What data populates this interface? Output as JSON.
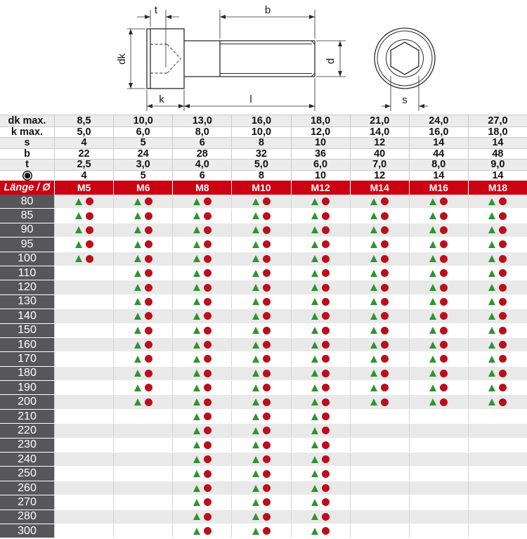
{
  "diagram": {
    "labels": {
      "t": "t",
      "b": "b",
      "dk": "dk",
      "k": "k",
      "l": "l",
      "d": "d",
      "s": "s"
    }
  },
  "spec_table": {
    "rows": [
      {
        "label": "dk max.",
        "values": [
          "8,5",
          "10,0",
          "13,0",
          "16,0",
          "18,0",
          "21,0",
          "24,0",
          "27,0"
        ]
      },
      {
        "label": "k max.",
        "values": [
          "5,0",
          "6,0",
          "8,0",
          "10,0",
          "12,0",
          "14,0",
          "16,0",
          "18,0"
        ]
      },
      {
        "label": "s",
        "values": [
          "4",
          "5",
          "6",
          "8",
          "10",
          "12",
          "14",
          "14"
        ]
      },
      {
        "label": "b",
        "values": [
          "22",
          "24",
          "28",
          "32",
          "36",
          "40",
          "44",
          "48"
        ]
      },
      {
        "label": "t",
        "values": [
          "2,5",
          "3,0",
          "4,0",
          "5,0",
          "6,0",
          "7,0",
          "8,0",
          "9,0"
        ]
      },
      {
        "label": "",
        "icon": "hex-key-icon",
        "values": [
          "4",
          "5",
          "6",
          "8",
          "10",
          "12",
          "14",
          "14"
        ]
      }
    ]
  },
  "matrix": {
    "corner_label": "Länge / Ø",
    "columns": [
      "M5",
      "M6",
      "M8",
      "M10",
      "M12",
      "M14",
      "M16",
      "M18"
    ],
    "marker_meaning": {
      "triangle": "triangle-marker",
      "circle": "circle-marker"
    },
    "rows": [
      {
        "length": "80",
        "available": [
          1,
          1,
          1,
          1,
          1,
          1,
          1,
          1
        ]
      },
      {
        "length": "85",
        "available": [
          1,
          1,
          1,
          1,
          1,
          1,
          1,
          1
        ]
      },
      {
        "length": "90",
        "available": [
          1,
          1,
          1,
          1,
          1,
          1,
          1,
          1
        ]
      },
      {
        "length": "95",
        "available": [
          1,
          1,
          1,
          1,
          1,
          1,
          1,
          1
        ]
      },
      {
        "length": "100",
        "available": [
          1,
          1,
          1,
          1,
          1,
          1,
          1,
          1
        ]
      },
      {
        "length": "110",
        "available": [
          0,
          1,
          1,
          1,
          1,
          1,
          1,
          1
        ]
      },
      {
        "length": "120",
        "available": [
          0,
          1,
          1,
          1,
          1,
          1,
          1,
          1
        ]
      },
      {
        "length": "130",
        "available": [
          0,
          1,
          1,
          1,
          1,
          1,
          1,
          1
        ]
      },
      {
        "length": "140",
        "available": [
          0,
          1,
          1,
          1,
          1,
          1,
          1,
          1
        ]
      },
      {
        "length": "150",
        "available": [
          0,
          1,
          1,
          1,
          1,
          1,
          1,
          1
        ]
      },
      {
        "length": "160",
        "available": [
          0,
          1,
          1,
          1,
          1,
          1,
          1,
          1
        ]
      },
      {
        "length": "170",
        "available": [
          0,
          1,
          1,
          1,
          1,
          1,
          1,
          1
        ]
      },
      {
        "length": "180",
        "available": [
          0,
          1,
          1,
          1,
          1,
          1,
          1,
          1
        ]
      },
      {
        "length": "190",
        "available": [
          0,
          1,
          1,
          1,
          1,
          1,
          1,
          1
        ]
      },
      {
        "length": "200",
        "available": [
          0,
          1,
          1,
          1,
          1,
          1,
          1,
          1
        ]
      },
      {
        "length": "210",
        "available": [
          0,
          0,
          1,
          1,
          1,
          0,
          0,
          0
        ]
      },
      {
        "length": "220",
        "available": [
          0,
          0,
          1,
          1,
          1,
          0,
          0,
          0
        ]
      },
      {
        "length": "230",
        "available": [
          0,
          0,
          1,
          1,
          1,
          0,
          0,
          0
        ]
      },
      {
        "length": "240",
        "available": [
          0,
          0,
          1,
          1,
          1,
          0,
          0,
          0
        ]
      },
      {
        "length": "250",
        "available": [
          0,
          0,
          1,
          1,
          1,
          0,
          0,
          0
        ]
      },
      {
        "length": "260",
        "available": [
          0,
          0,
          1,
          1,
          1,
          0,
          0,
          0
        ]
      },
      {
        "length": "270",
        "available": [
          0,
          0,
          1,
          1,
          1,
          0,
          0,
          0
        ]
      },
      {
        "length": "280",
        "available": [
          0,
          0,
          1,
          1,
          1,
          0,
          0,
          0
        ]
      },
      {
        "length": "300",
        "available": [
          0,
          0,
          1,
          1,
          1,
          0,
          0,
          0
        ]
      }
    ]
  },
  "colors": {
    "header_red": "#cc0011",
    "label_gray": "#57575b",
    "row_alt_gray": "#e9e9e9",
    "triangle_green": "#2e9430",
    "circle_red": "#bb0f1c",
    "drawing_line": "#2a2a2a"
  }
}
